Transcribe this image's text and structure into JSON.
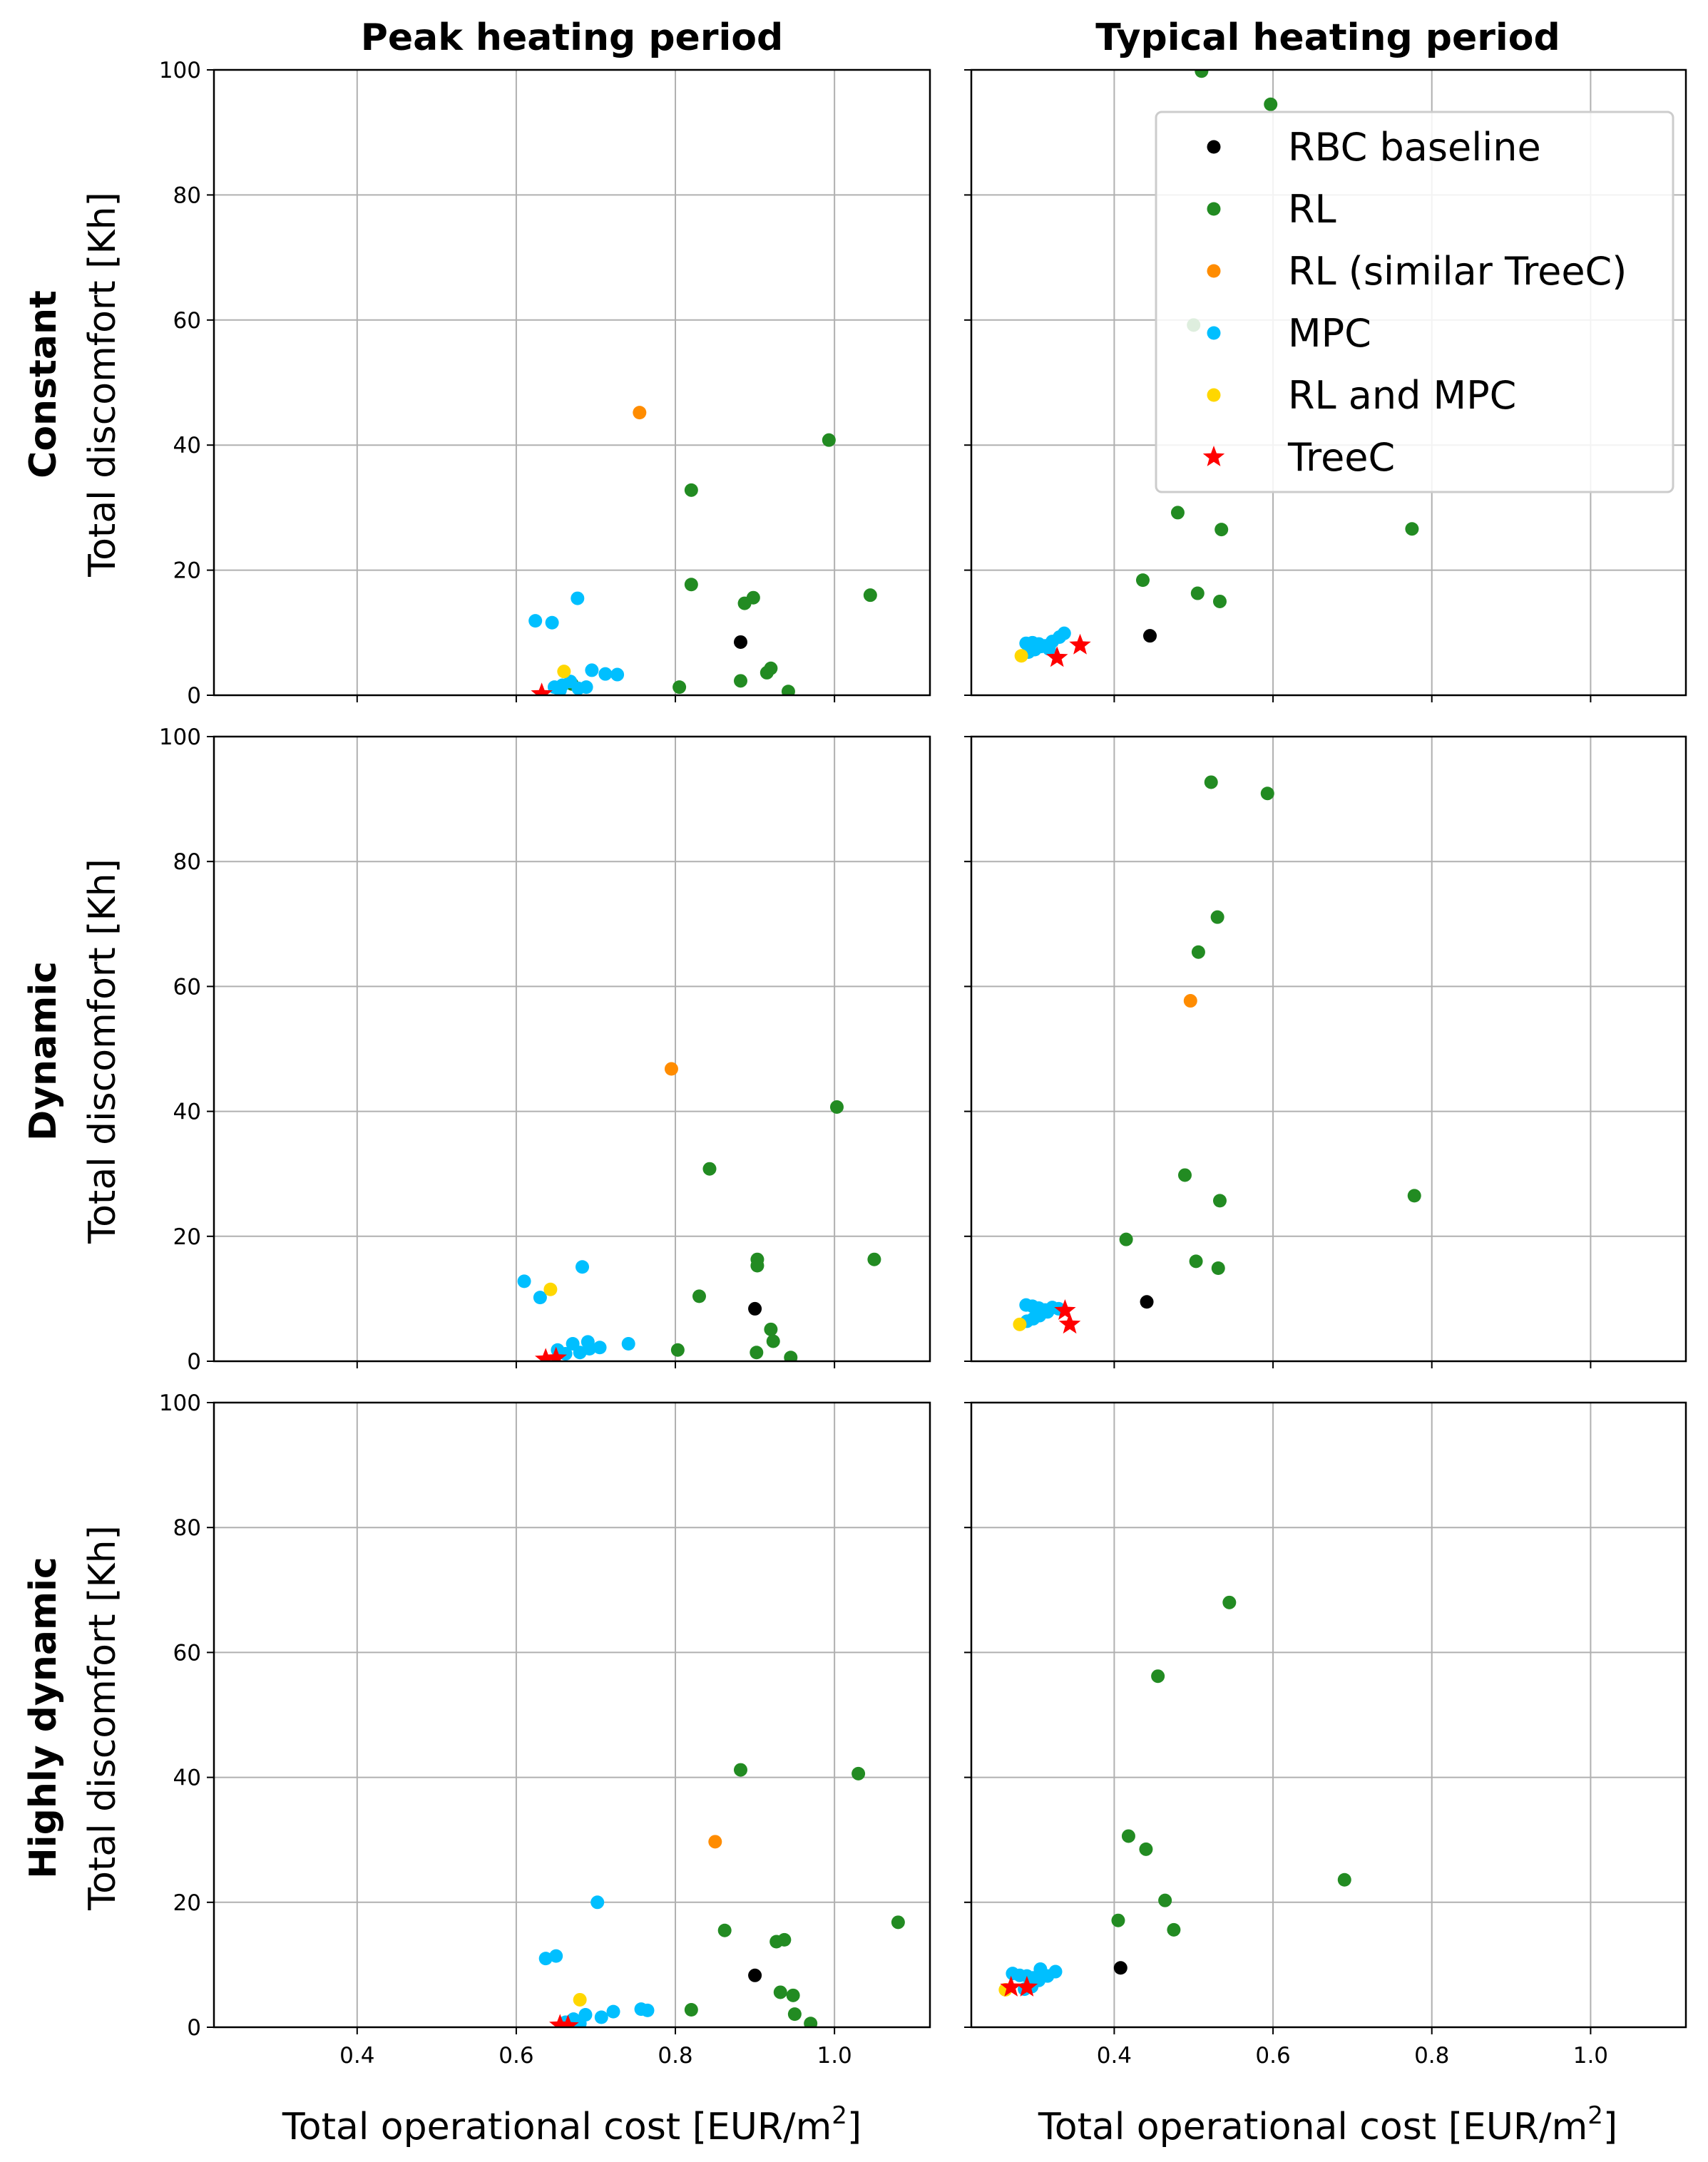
{
  "figure": {
    "column_titles": [
      "Peak heating period",
      "Typical heating period"
    ],
    "row_labels": [
      "Constant",
      "Dynamic",
      "Highly dynamic"
    ],
    "ylabel": "Total discomfort [Kh]",
    "xlabel_text": "Total operational cost [EUR/m",
    "xlabel_sup": "2",
    "xlabel_close": "]",
    "xlim": [
      0.22,
      1.12
    ],
    "ylim": [
      0,
      100
    ],
    "xticks": [
      0.4,
      0.6,
      0.8,
      1.0
    ],
    "xtick_labels": [
      "0.4",
      "0.6",
      "0.8",
      "1.0"
    ],
    "yticks": [
      0,
      20,
      40,
      60,
      80,
      100
    ],
    "ytick_labels": [
      "0",
      "20",
      "40",
      "60",
      "80",
      "100"
    ],
    "grid": true
  },
  "legend": {
    "placement": "top-right",
    "entries": [
      {
        "key": "rbc",
        "label": "RBC baseline",
        "color": "#000000",
        "marker": "circle"
      },
      {
        "key": "rl",
        "label": "RL",
        "color": "#228b22",
        "marker": "circle"
      },
      {
        "key": "rl_sim",
        "label": "RL (similar TreeC)",
        "color": "#ff8c00",
        "marker": "circle"
      },
      {
        "key": "mpc",
        "label": "MPC",
        "color": "#00bfff",
        "marker": "circle"
      },
      {
        "key": "rlmpc",
        "label": "RL and MPC",
        "color": "#ffd700",
        "marker": "circle"
      },
      {
        "key": "treec",
        "label": "TreeC",
        "color": "#ff0000",
        "marker": "star"
      }
    ]
  },
  "chart_data": [
    {
      "type": "scatter",
      "row": "Constant",
      "column": "Peak heating period",
      "series": [
        {
          "key": "rbc",
          "points": [
            [
              0.882,
              8.5
            ]
          ]
        },
        {
          "key": "rl",
          "points": [
            [
              0.993,
              40.8
            ],
            [
              0.82,
              32.8
            ],
            [
              0.82,
              17.7
            ],
            [
              0.887,
              14.7
            ],
            [
              0.898,
              15.6
            ],
            [
              1.045,
              16.0
            ],
            [
              0.805,
              1.3
            ],
            [
              0.882,
              2.3
            ],
            [
              0.915,
              3.6
            ],
            [
              0.92,
              4.3
            ],
            [
              0.942,
              0.6
            ],
            [
              0.67,
              1.8
            ]
          ]
        },
        {
          "key": "rl_sim",
          "points": [
            [
              0.755,
              45.2
            ]
          ]
        },
        {
          "key": "mpc",
          "points": [
            [
              0.624,
              11.9
            ],
            [
              0.645,
              11.6
            ],
            [
              0.677,
              15.5
            ],
            [
              0.695,
              4.0
            ],
            [
              0.712,
              3.4
            ],
            [
              0.727,
              3.3
            ],
            [
              0.648,
              1.3
            ],
            [
              0.658,
              1.6
            ],
            [
              0.668,
              2.2
            ],
            [
              0.678,
              1.1
            ],
            [
              0.688,
              1.3
            ],
            [
              0.655,
              0.8
            ]
          ]
        },
        {
          "key": "rlmpc",
          "points": [
            [
              0.66,
              3.8
            ]
          ]
        },
        {
          "key": "treec",
          "points": [
            [
              0.632,
              0.2
            ]
          ]
        }
      ]
    },
    {
      "type": "scatter",
      "row": "Constant",
      "column": "Typical heating period",
      "series": [
        {
          "key": "rbc",
          "points": [
            [
              0.445,
              9.5
            ]
          ]
        },
        {
          "key": "rl",
          "points": [
            [
              0.51,
              99.8
            ],
            [
              0.597,
              94.5
            ],
            [
              0.5,
              59.2
            ],
            [
              0.48,
              29.2
            ],
            [
              0.535,
              26.5
            ],
            [
              0.775,
              26.6
            ],
            [
              0.436,
              18.4
            ],
            [
              0.505,
              16.3
            ],
            [
              0.533,
              15.0
            ]
          ]
        },
        {
          "key": "rl_sim",
          "points": []
        },
        {
          "key": "mpc",
          "points": [
            [
              0.289,
              8.3
            ],
            [
              0.297,
              8.4
            ],
            [
              0.305,
              8.2
            ],
            [
              0.313,
              7.9
            ],
            [
              0.322,
              8.6
            ],
            [
              0.331,
              9.3
            ],
            [
              0.337,
              9.9
            ],
            [
              0.292,
              6.9
            ],
            [
              0.3,
              7.3
            ],
            [
              0.308,
              7.8
            ],
            [
              0.318,
              7.4
            ]
          ]
        },
        {
          "key": "rlmpc",
          "points": [
            [
              0.283,
              6.3
            ]
          ]
        },
        {
          "key": "treec",
          "points": [
            [
              0.328,
              6.0
            ],
            [
              0.357,
              8.0
            ]
          ]
        }
      ]
    },
    {
      "type": "scatter",
      "row": "Dynamic",
      "column": "Peak heating period",
      "series": [
        {
          "key": "rbc",
          "points": [
            [
              0.9,
              8.4
            ]
          ]
        },
        {
          "key": "rl",
          "points": [
            [
              1.003,
              40.7
            ],
            [
              0.843,
              30.8
            ],
            [
              0.83,
              10.4
            ],
            [
              0.903,
              16.3
            ],
            [
              0.903,
              15.3
            ],
            [
              1.05,
              16.3
            ],
            [
              0.92,
              5.1
            ],
            [
              0.923,
              3.2
            ],
            [
              0.803,
              1.8
            ],
            [
              0.902,
              1.4
            ],
            [
              0.945,
              0.6
            ]
          ]
        },
        {
          "key": "rl_sim",
          "points": [
            [
              0.795,
              46.8
            ]
          ]
        },
        {
          "key": "mpc",
          "points": [
            [
              0.61,
              12.8
            ],
            [
              0.63,
              10.2
            ],
            [
              0.683,
              15.1
            ],
            [
              0.741,
              2.8
            ],
            [
              0.671,
              2.8
            ],
            [
              0.69,
              3.1
            ],
            [
              0.705,
              2.2
            ],
            [
              0.652,
              1.8
            ],
            [
              0.662,
              1.2
            ],
            [
              0.68,
              1.4
            ],
            [
              0.692,
              2.0
            ]
          ]
        },
        {
          "key": "rlmpc",
          "points": [
            [
              0.643,
              11.5
            ]
          ]
        },
        {
          "key": "treec",
          "points": [
            [
              0.637,
              0.3
            ],
            [
              0.65,
              0.5
            ]
          ]
        }
      ]
    },
    {
      "type": "scatter",
      "row": "Dynamic",
      "column": "Typical heating period",
      "series": [
        {
          "key": "rbc",
          "points": [
            [
              0.441,
              9.5
            ]
          ]
        },
        {
          "key": "rl",
          "points": [
            [
              0.522,
              92.7
            ],
            [
              0.593,
              90.9
            ],
            [
              0.53,
              71.1
            ],
            [
              0.506,
              65.5
            ],
            [
              0.489,
              29.8
            ],
            [
              0.533,
              25.7
            ],
            [
              0.778,
              26.5
            ],
            [
              0.415,
              19.5
            ],
            [
              0.503,
              16.0
            ],
            [
              0.531,
              14.9
            ]
          ]
        },
        {
          "key": "rl_sim",
          "points": [
            [
              0.496,
              57.7
            ]
          ]
        },
        {
          "key": "mpc",
          "points": [
            [
              0.289,
              9.0
            ],
            [
              0.297,
              8.8
            ],
            [
              0.305,
              8.5
            ],
            [
              0.313,
              8.2
            ],
            [
              0.322,
              8.6
            ],
            [
              0.33,
              8.4
            ],
            [
              0.29,
              6.4
            ],
            [
              0.298,
              6.8
            ],
            [
              0.306,
              7.3
            ],
            [
              0.316,
              7.9
            ]
          ]
        },
        {
          "key": "rlmpc",
          "points": [
            [
              0.281,
              5.9
            ]
          ]
        },
        {
          "key": "treec",
          "points": [
            [
              0.338,
              8.1
            ],
            [
              0.344,
              5.9
            ]
          ]
        }
      ]
    },
    {
      "type": "scatter",
      "row": "Highly dynamic",
      "column": "Peak heating period",
      "series": [
        {
          "key": "rbc",
          "points": [
            [
              0.9,
              8.3
            ]
          ]
        },
        {
          "key": "rl",
          "points": [
            [
              0.882,
              41.2
            ],
            [
              1.03,
              40.6
            ],
            [
              1.08,
              16.8
            ],
            [
              0.862,
              15.5
            ],
            [
              0.927,
              13.7
            ],
            [
              0.937,
              14.0
            ],
            [
              0.82,
              2.8
            ],
            [
              0.932,
              5.6
            ],
            [
              0.948,
              5.1
            ],
            [
              0.95,
              2.1
            ],
            [
              0.97,
              0.6
            ]
          ]
        },
        {
          "key": "rl_sim",
          "points": [
            [
              0.85,
              29.7
            ]
          ]
        },
        {
          "key": "mpc",
          "points": [
            [
              0.702,
              20.0
            ],
            [
              0.637,
              11.0
            ],
            [
              0.65,
              11.4
            ],
            [
              0.757,
              2.9
            ],
            [
              0.765,
              2.7
            ],
            [
              0.722,
              2.5
            ],
            [
              0.707,
              1.6
            ],
            [
              0.687,
              2.0
            ],
            [
              0.672,
              1.3
            ],
            [
              0.662,
              0.8
            ],
            [
              0.68,
              0.6
            ]
          ]
        },
        {
          "key": "rlmpc",
          "points": [
            [
              0.68,
              4.4
            ]
          ]
        },
        {
          "key": "treec",
          "points": [
            [
              0.655,
              0.3
            ],
            [
              0.665,
              0.2
            ]
          ]
        }
      ]
    },
    {
      "type": "scatter",
      "row": "Highly dynamic",
      "column": "Typical heating period",
      "series": [
        {
          "key": "rbc",
          "points": [
            [
              0.408,
              9.5
            ]
          ]
        },
        {
          "key": "rl",
          "points": [
            [
              0.545,
              68.0
            ],
            [
              0.455,
              56.2
            ],
            [
              0.418,
              30.6
            ],
            [
              0.44,
              28.5
            ],
            [
              0.464,
              20.3
            ],
            [
              0.69,
              23.6
            ],
            [
              0.405,
              17.1
            ],
            [
              0.475,
              15.6
            ]
          ]
        },
        {
          "key": "rl_sim",
          "points": []
        },
        {
          "key": "mpc",
          "points": [
            [
              0.272,
              8.6
            ],
            [
              0.281,
              8.3
            ],
            [
              0.29,
              8.2
            ],
            [
              0.298,
              7.9
            ],
            [
              0.307,
              9.3
            ],
            [
              0.316,
              8.2
            ],
            [
              0.326,
              8.9
            ],
            [
              0.287,
              6.1
            ],
            [
              0.296,
              6.5
            ],
            [
              0.305,
              7.5
            ]
          ]
        },
        {
          "key": "rlmpc",
          "points": [
            [
              0.263,
              6.0
            ]
          ]
        },
        {
          "key": "treec",
          "points": [
            [
              0.27,
              6.4
            ],
            [
              0.29,
              6.4
            ]
          ]
        }
      ]
    }
  ]
}
